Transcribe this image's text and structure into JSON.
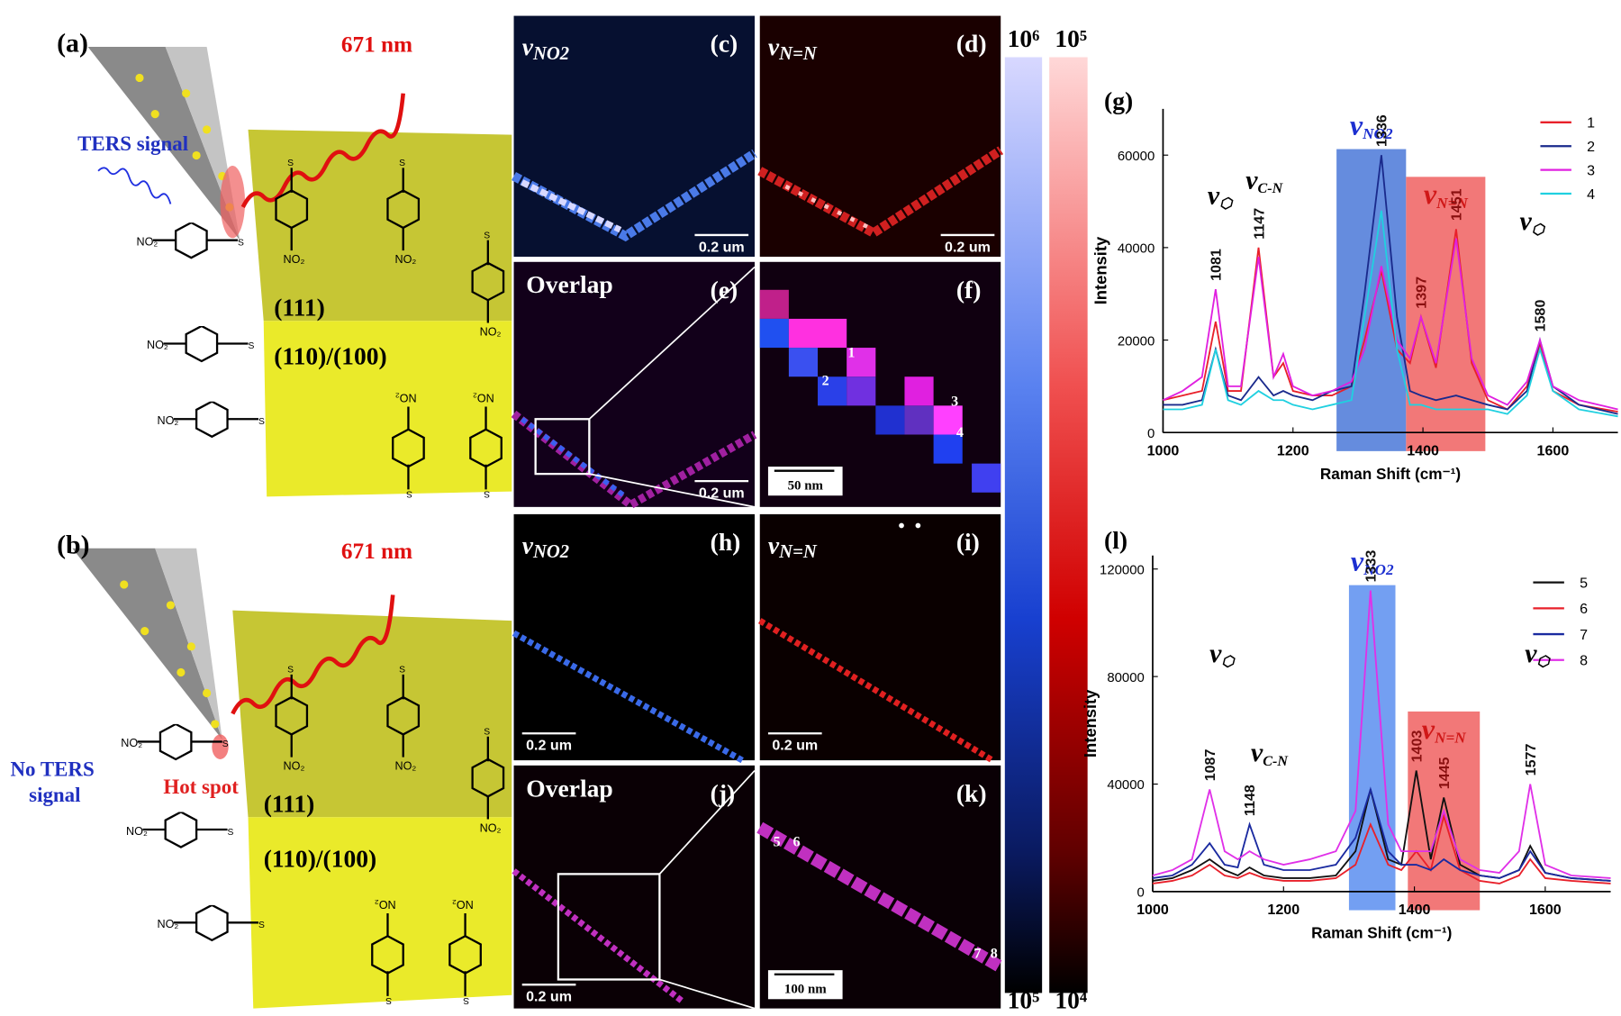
{
  "schematics": [
    {
      "label": "(a)",
      "laser": "671 nm",
      "signal": [
        "TERS signal"
      ],
      "facets": [
        "(111)",
        "(110)/(100)"
      ]
    },
    {
      "label": "(b)",
      "laser": "671 nm",
      "signal": [
        "No TERS",
        "signal"
      ],
      "hot_spot": "Hot spot",
      "facets": [
        "(111)",
        "(110)/(100)"
      ]
    }
  ],
  "maps": [
    {
      "label": "(c)",
      "title": {
        "symbol": "ν",
        "sub": "NO2"
      },
      "scale_bar": "0.2 um"
    },
    {
      "label": "(d)",
      "title": {
        "symbol": "ν",
        "sub": "N=N"
      },
      "scale_bar": "0.2 um"
    },
    {
      "label": "(e)",
      "title": "Overlap",
      "scale_bar": "0.2 um"
    },
    {
      "label": "(f)",
      "scale_bar": "50 nm",
      "spots": [
        "1",
        "2",
        "3",
        "4"
      ]
    },
    {
      "label": "(h)",
      "title": {
        "symbol": "ν",
        "sub": "NO2"
      },
      "scale_bar": "0.2 um"
    },
    {
      "label": "(i)",
      "title": {
        "symbol": "ν",
        "sub": "N=N"
      },
      "scale_bar": "0.2 um"
    },
    {
      "label": "(j)",
      "title": "Overlap",
      "scale_bar": "0.2 um"
    },
    {
      "label": "(k)",
      "scale_bar": "100 nm",
      "spots": [
        "5",
        "6",
        "7",
        "8"
      ]
    }
  ],
  "colorbars": [
    {
      "top": "10⁶",
      "bottom": "10⁵"
    },
    {
      "top": "10⁵",
      "bottom": "10⁴"
    }
  ],
  "chart_data": [
    {
      "type": "line",
      "label": "(g)",
      "xlabel": "Raman Shift (cm⁻¹)",
      "ylabel": "Intensity",
      "x": [
        1000,
        1030,
        1060,
        1081,
        1100,
        1120,
        1147,
        1170,
        1185,
        1200,
        1230,
        1260,
        1290,
        1310,
        1336,
        1360,
        1380,
        1397,
        1420,
        1451,
        1475,
        1500,
        1530,
        1560,
        1580,
        1600,
        1640,
        1700
      ],
      "series": [
        {
          "name": "1",
          "color": "#e8202a",
          "values": [
            7000,
            8000,
            9000,
            24000,
            9000,
            9000,
            40000,
            12000,
            15000,
            9000,
            8000,
            8000,
            10000,
            20000,
            35000,
            18000,
            15000,
            25000,
            14000,
            44000,
            15000,
            7000,
            5000,
            10000,
            19000,
            9000,
            6000,
            4500
          ]
        },
        {
          "name": "2",
          "color": "#1a2a8c",
          "values": [
            6000,
            6000,
            7000,
            18000,
            8000,
            7000,
            12000,
            8000,
            9000,
            8000,
            7000,
            9000,
            10000,
            30000,
            60000,
            25000,
            9000,
            8000,
            7000,
            8000,
            7000,
            6000,
            5000,
            9000,
            20000,
            10000,
            6000,
            4000
          ]
        },
        {
          "name": "3",
          "color": "#e020e0",
          "values": [
            7000,
            9000,
            12000,
            31000,
            10000,
            10000,
            38000,
            12000,
            17000,
            10000,
            8000,
            9000,
            11000,
            18000,
            36000,
            20000,
            16000,
            25000,
            15000,
            42000,
            16000,
            8000,
            6000,
            11000,
            20000,
            10000,
            7000,
            5000
          ]
        },
        {
          "name": "4",
          "color": "#20d0e0",
          "values": [
            5000,
            5000,
            6000,
            18000,
            7000,
            6000,
            9000,
            7000,
            7000,
            6000,
            5000,
            6000,
            7000,
            25000,
            48000,
            18000,
            6000,
            6000,
            5000,
            5000,
            5000,
            5000,
            4000,
            8000,
            18000,
            9000,
            5000,
            3500
          ]
        }
      ],
      "xlim": [
        1000,
        1700
      ],
      "xticks": [
        1000,
        1200,
        1400,
        1600
      ],
      "ylim": [
        0,
        70000
      ],
      "yticks": [
        0,
        20000,
        40000,
        60000
      ],
      "legend": "upper right",
      "bands": [
        {
          "label": {
            "symbol": "ν",
            "sub": "NO2"
          },
          "label_color": "#1c2fd0",
          "color": "#4a78d8",
          "xrange": [
            1267,
            1374
          ],
          "ytop": 61300
        },
        {
          "label": {
            "symbol": "ν",
            "sub": "N=N"
          },
          "label_color": "#d01818",
          "color": "#f06060",
          "xrange": [
            1374,
            1496
          ],
          "ytop": 55300
        }
      ],
      "peak_labels": [
        1081,
        1147,
        1336,
        1397,
        1451,
        1580
      ],
      "mode_labels": [
        {
          "symbol": "ν",
          "sub": "⬡"
        },
        {
          "symbol": "ν",
          "sub": "C-N"
        },
        {
          "symbol": "ν",
          "sub": "⬡"
        }
      ]
    },
    {
      "type": "line",
      "label": "(l)",
      "xlabel": "Raman Shift (cm⁻¹)",
      "ylabel": "Intensity",
      "x": [
        1000,
        1030,
        1060,
        1087,
        1110,
        1130,
        1148,
        1170,
        1200,
        1240,
        1280,
        1310,
        1333,
        1360,
        1380,
        1403,
        1425,
        1445,
        1470,
        1500,
        1530,
        1560,
        1577,
        1600,
        1640,
        1700
      ],
      "series": [
        {
          "name": "5",
          "color": "#111111",
          "values": [
            4000,
            5000,
            8000,
            12000,
            8000,
            6000,
            9000,
            6000,
            5000,
            5000,
            6000,
            15000,
            38000,
            12000,
            10000,
            45000,
            12000,
            35000,
            10000,
            6000,
            5000,
            8000,
            17000,
            7000,
            5000,
            4000
          ]
        },
        {
          "name": "6",
          "color": "#e8202a",
          "values": [
            3000,
            4000,
            6000,
            10000,
            6000,
            5000,
            7000,
            5000,
            4000,
            4000,
            5000,
            10000,
            25000,
            10000,
            8000,
            15000,
            8000,
            28000,
            8000,
            4000,
            3000,
            6000,
            12000,
            5000,
            4000,
            3000
          ]
        },
        {
          "name": "7",
          "color": "#1a2aa0",
          "values": [
            5000,
            6000,
            10000,
            18000,
            10000,
            9000,
            25000,
            10000,
            8000,
            8000,
            10000,
            20000,
            38000,
            15000,
            10000,
            10000,
            8000,
            12000,
            8000,
            6000,
            5000,
            8000,
            15000,
            7000,
            5000,
            4000
          ]
        },
        {
          "name": "8",
          "color": "#e030e8",
          "values": [
            6000,
            8000,
            12000,
            38000,
            15000,
            12000,
            15000,
            12000,
            10000,
            12000,
            15000,
            30000,
            112000,
            25000,
            15000,
            15000,
            15000,
            30000,
            12000,
            8000,
            7000,
            15000,
            40000,
            10000,
            6000,
            5000
          ]
        }
      ],
      "xlim": [
        1000,
        1700
      ],
      "xticks": [
        1000,
        1200,
        1400,
        1600
      ],
      "ylim": [
        0,
        125000
      ],
      "yticks": [
        0,
        40000,
        80000,
        120000
      ],
      "legend": "upper right",
      "bands": [
        {
          "label": {
            "symbol": "ν",
            "sub": "NO2"
          },
          "label_color": "#1c2fd0",
          "color": "#5a8ef0",
          "xrange": [
            1300,
            1371
          ],
          "ytop": 114000
        },
        {
          "label": {
            "symbol": "ν",
            "sub": "N=N"
          },
          "label_color": "#d01818",
          "color": "#f06060",
          "xrange": [
            1390,
            1500
          ],
          "ytop": 67000
        }
      ],
      "peak_labels": [
        1087,
        1148,
        1333,
        1403,
        1445,
        1577
      ],
      "mode_labels": [
        {
          "symbol": "ν",
          "sub": "⬡"
        },
        {
          "symbol": "ν",
          "sub": "C-N"
        },
        {
          "symbol": "ν",
          "sub": "⬡"
        }
      ]
    }
  ]
}
